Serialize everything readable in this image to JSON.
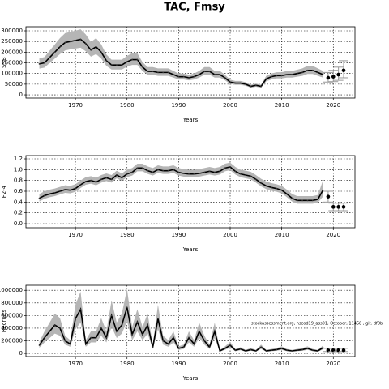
{
  "chart_data": [
    {
      "type": "line",
      "title": "TAC, Fmsy",
      "ylabel": "SSB",
      "xlabel": "Years",
      "x": [
        1963,
        1964,
        1965,
        1966,
        1967,
        1968,
        1969,
        1970,
        1971,
        1972,
        1973,
        1974,
        1975,
        1976,
        1977,
        1978,
        1979,
        1980,
        1981,
        1982,
        1983,
        1984,
        1985,
        1986,
        1987,
        1988,
        1989,
        1990,
        1991,
        1992,
        1993,
        1994,
        1995,
        1996,
        1997,
        1998,
        1999,
        2000,
        2001,
        2002,
        2003,
        2004,
        2005,
        2006,
        2007,
        2008,
        2009,
        2010,
        2011,
        2012,
        2013,
        2014,
        2015,
        2016,
        2017,
        2018
      ],
      "values": [
        145000,
        150000,
        175000,
        200000,
        225000,
        245000,
        250000,
        255000,
        260000,
        240000,
        210000,
        225000,
        200000,
        160000,
        140000,
        140000,
        140000,
        155000,
        165000,
        165000,
        130000,
        110000,
        110000,
        105000,
        105000,
        105000,
        95000,
        85000,
        85000,
        80000,
        85000,
        95000,
        110000,
        110000,
        95000,
        95000,
        80000,
        60000,
        55000,
        55000,
        50000,
        40000,
        45000,
        40000,
        75000,
        85000,
        90000,
        90000,
        95000,
        95000,
        100000,
        105000,
        115000,
        115000,
        105000,
        95000
      ],
      "low": [
        123000,
        128000,
        149000,
        170000,
        191000,
        208000,
        213000,
        217000,
        221000,
        204000,
        179000,
        191000,
        170000,
        136000,
        119000,
        119000,
        119000,
        132000,
        140000,
        140000,
        111000,
        94000,
        94000,
        89000,
        89000,
        89000,
        81000,
        72000,
        72000,
        68000,
        72000,
        81000,
        94000,
        94000,
        81000,
        81000,
        68000,
        51000,
        47000,
        47000,
        43000,
        34000,
        38000,
        34000,
        64000,
        72000,
        77000,
        77000,
        81000,
        81000,
        85000,
        89000,
        98000,
        98000,
        89000,
        81000
      ],
      "high": [
        171000,
        177000,
        207000,
        236000,
        266000,
        289000,
        295000,
        301000,
        307000,
        283000,
        248000,
        266000,
        236000,
        189000,
        165000,
        165000,
        165000,
        183000,
        195000,
        195000,
        153000,
        130000,
        130000,
        124000,
        124000,
        124000,
        112000,
        100000,
        100000,
        94000,
        100000,
        112000,
        130000,
        130000,
        112000,
        112000,
        94000,
        71000,
        65000,
        65000,
        59000,
        47000,
        53000,
        47000,
        89000,
        100000,
        106000,
        106000,
        112000,
        112000,
        118000,
        124000,
        136000,
        136000,
        124000,
        112000
      ],
      "forecast": {
        "x": [
          2019,
          2020,
          2021,
          2022
        ],
        "values": [
          80000,
          85000,
          95000,
          115000
        ],
        "low": [
          60000,
          62000,
          68000,
          80000
        ],
        "high": [
          105000,
          115000,
          130000,
          160000
        ]
      },
      "xlim": [
        1960.4,
        2024.2
      ],
      "xticks": [
        1970,
        1980,
        1990,
        2000,
        2010,
        2020
      ],
      "ylim": [
        -15000,
        319000
      ],
      "yticks": [
        0,
        50000,
        100000,
        150000,
        200000,
        250000,
        300000
      ],
      "grid": true
    },
    {
      "type": "line",
      "ylabel": "F2-4",
      "xlabel": "Years",
      "x": [
        1963,
        1964,
        1965,
        1966,
        1967,
        1968,
        1969,
        1970,
        1971,
        1972,
        1973,
        1974,
        1975,
        1976,
        1977,
        1978,
        1979,
        1980,
        1981,
        1982,
        1983,
        1984,
        1985,
        1986,
        1987,
        1988,
        1989,
        1990,
        1991,
        1992,
        1993,
        1994,
        1995,
        1996,
        1997,
        1998,
        1999,
        2000,
        2001,
        2002,
        2003,
        2004,
        2005,
        2006,
        2007,
        2008,
        2009,
        2010,
        2011,
        2012,
        2013,
        2014,
        2015,
        2016,
        2017,
        2018
      ],
      "values": [
        0.47,
        0.52,
        0.55,
        0.57,
        0.6,
        0.63,
        0.62,
        0.65,
        0.72,
        0.78,
        0.8,
        0.77,
        0.82,
        0.85,
        0.82,
        0.9,
        0.85,
        0.92,
        0.95,
        1.03,
        1.03,
        0.98,
        0.95,
        1.0,
        0.98,
        0.98,
        1.0,
        0.95,
        0.93,
        0.92,
        0.92,
        0.93,
        0.95,
        0.97,
        0.95,
        0.97,
        1.03,
        1.05,
        0.97,
        0.92,
        0.9,
        0.88,
        0.82,
        0.75,
        0.7,
        0.67,
        0.65,
        0.62,
        0.55,
        0.47,
        0.43,
        0.43,
        0.43,
        0.43,
        0.45,
        0.62
      ],
      "low": [
        0.41,
        0.46,
        0.49,
        0.51,
        0.54,
        0.57,
        0.56,
        0.59,
        0.66,
        0.72,
        0.74,
        0.71,
        0.76,
        0.79,
        0.76,
        0.84,
        0.79,
        0.86,
        0.89,
        0.97,
        0.97,
        0.92,
        0.89,
        0.94,
        0.92,
        0.92,
        0.94,
        0.89,
        0.87,
        0.86,
        0.86,
        0.87,
        0.89,
        0.91,
        0.89,
        0.91,
        0.97,
        0.99,
        0.91,
        0.86,
        0.84,
        0.82,
        0.76,
        0.69,
        0.64,
        0.61,
        0.59,
        0.56,
        0.49,
        0.41,
        0.37,
        0.37,
        0.37,
        0.37,
        0.39,
        0.5
      ],
      "high": [
        0.55,
        0.6,
        0.63,
        0.65,
        0.68,
        0.71,
        0.7,
        0.73,
        0.8,
        0.86,
        0.88,
        0.85,
        0.9,
        0.93,
        0.9,
        0.98,
        0.93,
        1.0,
        1.03,
        1.11,
        1.11,
        1.06,
        1.03,
        1.08,
        1.06,
        1.06,
        1.08,
        1.03,
        1.01,
        1.0,
        1.0,
        1.01,
        1.03,
        1.05,
        1.03,
        1.05,
        1.11,
        1.13,
        1.05,
        1.0,
        0.98,
        0.96,
        0.9,
        0.83,
        0.78,
        0.75,
        0.73,
        0.7,
        0.63,
        0.55,
        0.51,
        0.51,
        0.51,
        0.51,
        0.53,
        0.8
      ],
      "forecast": {
        "x": [
          2019,
          2020,
          2021,
          2022
        ],
        "values": [
          0.5,
          0.31,
          0.31,
          0.31
        ],
        "low": [
          0.4,
          0.24,
          0.24,
          0.24
        ],
        "high": [
          0.6,
          0.38,
          0.38,
          0.38
        ]
      },
      "xlim": [
        1960.4,
        2024.2
      ],
      "xticks": [
        1970,
        1980,
        1990,
        2000,
        2010,
        2020
      ],
      "ylim": [
        -0.075,
        1.26
      ],
      "yticks": [
        {
          "value": 0,
          "label": "0.0"
        },
        0.2,
        0.4,
        0.6,
        0.8,
        {
          "value": 1,
          "label": "1.0"
        },
        1.2
      ],
      "grid": true
    },
    {
      "type": "line",
      "ylabel": "Recruits",
      "xlabel": "Years",
      "annotation": "stockassessment.org, nscod19_ass01, October, 11458 , git: df0b",
      "x": [
        1963,
        1964,
        1965,
        1966,
        1967,
        1968,
        1969,
        1970,
        1971,
        1972,
        1973,
        1974,
        1975,
        1976,
        1977,
        1978,
        1979,
        1980,
        1981,
        1982,
        1983,
        1984,
        1985,
        1986,
        1987,
        1988,
        1989,
        1990,
        1991,
        1992,
        1993,
        1994,
        1995,
        1996,
        1997,
        1998,
        1999,
        2000,
        2001,
        2002,
        2003,
        2004,
        2005,
        2006,
        2007,
        2008,
        2009,
        2010,
        2011,
        2012,
        2013,
        2014,
        2015,
        2016,
        2017,
        2018
      ],
      "values": [
        130000,
        250000,
        350000,
        450000,
        400000,
        200000,
        150000,
        550000,
        700000,
        150000,
        250000,
        250000,
        400000,
        250000,
        600000,
        350000,
        450000,
        730000,
        300000,
        500000,
        300000,
        450000,
        100000,
        550000,
        200000,
        150000,
        250000,
        80000,
        100000,
        250000,
        150000,
        350000,
        200000,
        100000,
        350000,
        40000,
        80000,
        130000,
        50000,
        70000,
        40000,
        60000,
        40000,
        100000,
        40000,
        50000,
        60000,
        80000,
        50000,
        40000,
        50000,
        60000,
        80000,
        50000,
        40000,
        90000
      ],
      "low": [
        91000,
        175000,
        245000,
        315000,
        280000,
        140000,
        105000,
        385000,
        490000,
        105000,
        175000,
        175000,
        280000,
        175000,
        420000,
        245000,
        315000,
        511000,
        210000,
        350000,
        210000,
        315000,
        70000,
        385000,
        140000,
        105000,
        175000,
        56000,
        70000,
        175000,
        105000,
        245000,
        140000,
        70000,
        245000,
        28000,
        56000,
        91000,
        35000,
        49000,
        28000,
        42000,
        28000,
        70000,
        28000,
        35000,
        42000,
        56000,
        35000,
        28000,
        35000,
        42000,
        56000,
        35000,
        28000,
        63000
      ],
      "high": [
        182000,
        350000,
        490000,
        630000,
        560000,
        280000,
        210000,
        770000,
        980000,
        210000,
        350000,
        350000,
        560000,
        350000,
        840000,
        490000,
        630000,
        1022000,
        420000,
        700000,
        420000,
        630000,
        140000,
        770000,
        280000,
        210000,
        350000,
        112000,
        140000,
        350000,
        210000,
        490000,
        280000,
        140000,
        490000,
        56000,
        112000,
        182000,
        70000,
        98000,
        56000,
        84000,
        56000,
        140000,
        56000,
        70000,
        84000,
        112000,
        70000,
        56000,
        70000,
        84000,
        112000,
        70000,
        56000,
        126000
      ],
      "forecast": {
        "x": [
          2019,
          2020,
          2021,
          2022
        ],
        "values": [
          50000,
          50000,
          50000,
          50000
        ],
        "low": [
          30000,
          30000,
          30000,
          30000
        ],
        "high": [
          80000,
          80000,
          80000,
          80000
        ]
      },
      "xlim": [
        1960.4,
        2024.2
      ],
      "xticks": [
        1970,
        1980,
        1990,
        2000,
        2010,
        2020
      ],
      "ylim": [
        -50000,
        1080000
      ],
      "yticks": [
        0,
        200000,
        400000,
        600000,
        800000,
        1000000
      ],
      "grid": true
    }
  ]
}
